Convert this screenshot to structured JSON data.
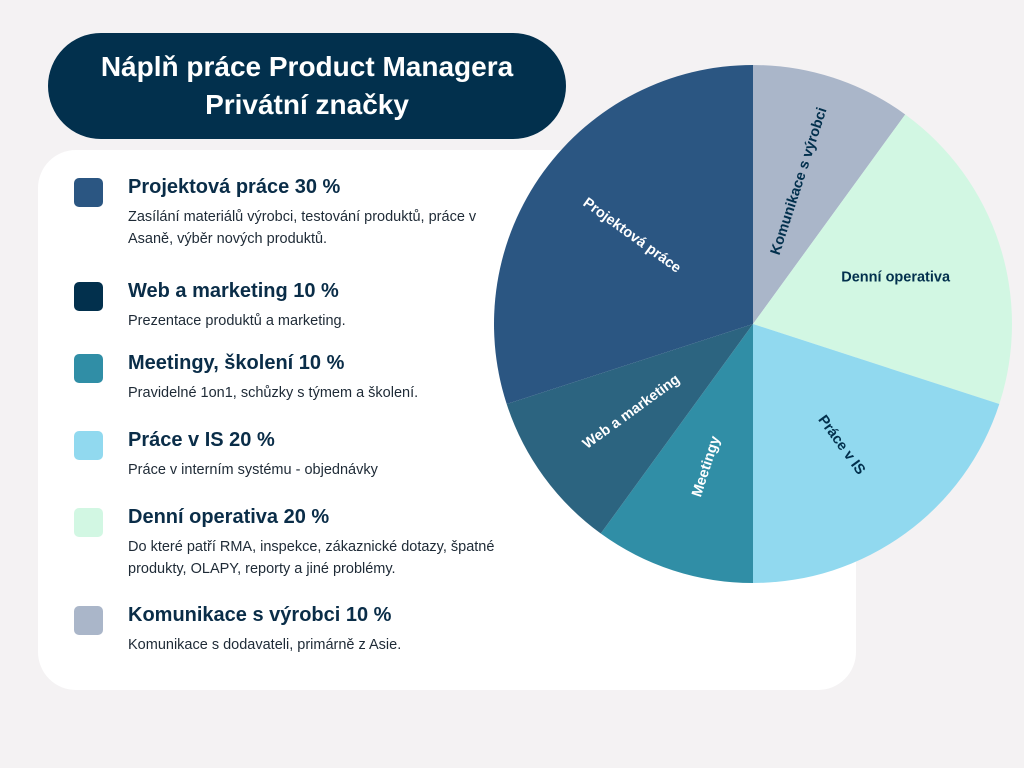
{
  "header": {
    "title_line1": "Náplň práce Product Managera",
    "title_line2": "Privátní značky"
  },
  "legend": [
    {
      "heading": "Projektová práce 30 %",
      "desc": "Zasílání materiálů výrobci, testování produktů, práce v Asaně, výběr nových produktů.",
      "color": "#2b5682"
    },
    {
      "heading": "Web a marketing 10 %",
      "desc": "Prezentace produktů a marketing.",
      "color": "#02304d"
    },
    {
      "heading": "Meetingy, školení 10 %",
      "desc": "Pravidelné 1on1, schůzky s týmem a školení.",
      "color": "#308ea6"
    },
    {
      "heading": "Práce v IS 20 %",
      "desc": "Práce v interním systému - objednávky",
      "color": "#91d9ef"
    },
    {
      "heading": "Denní operativa 20 %",
      "desc": "Do které patří  RMA, inspekce, zákaznické dotazy, špatné produkty, OLAPY, reporty a jiné problémy.",
      "color": "#d2f7e3"
    },
    {
      "heading": "Komunikace s výrobci 10 %",
      "desc": "Komunikace s dodavateli, primárně z Asie.",
      "color": "#aab6c9"
    }
  ],
  "chart_data": {
    "type": "pie",
    "start": "top, clockwise",
    "slices": [
      {
        "label": "Komunikace s výrobci",
        "value": 10,
        "color": "#aab6c9",
        "label_color": "#02304d"
      },
      {
        "label": "Denní operativa",
        "value": 20,
        "color": "#d2f7e3",
        "label_color": "#02304d"
      },
      {
        "label": "Práce v IS",
        "value": 20,
        "color": "#91d9ef",
        "label_color": "#02304d"
      },
      {
        "label": "Meetingy",
        "value": 10,
        "color": "#308ea6",
        "label_color": "#ffffff"
      },
      {
        "label": "Web a marketing",
        "value": 10,
        "color": "#2c6480",
        "label_color": "#ffffff"
      },
      {
        "label": "Projektová práce",
        "value": 30,
        "color": "#2b5682",
        "label_color": "#ffffff"
      }
    ]
  }
}
